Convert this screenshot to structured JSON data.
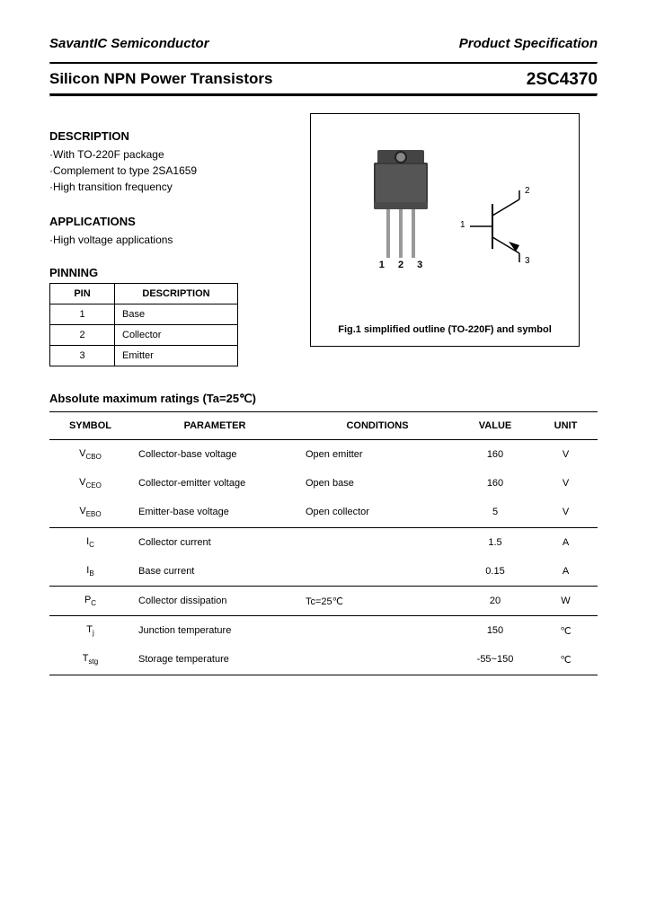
{
  "header": {
    "company": "SavantIC Semiconductor",
    "spec": "Product Specification"
  },
  "title": {
    "left": "Silicon NPN Power Transistors",
    "part": "2SC4370"
  },
  "description": {
    "heading": "DESCRIPTION",
    "items": [
      "·With TO-220F package",
      "·Complement to type 2SA1659",
      "·High transition frequency"
    ]
  },
  "applications": {
    "heading": "APPLICATIONS",
    "items": [
      "·High voltage applications"
    ]
  },
  "pinning": {
    "heading": "PINNING",
    "col_pin": "PIN",
    "col_desc": "DESCRIPTION",
    "rows": [
      {
        "pin": "1",
        "desc": "Base"
      },
      {
        "pin": "2",
        "desc": "Collector"
      },
      {
        "pin": "3",
        "desc": "Emitter"
      }
    ]
  },
  "figure": {
    "pin_labels": "1 2 3",
    "caption": "Fig.1 simplified outline (TO-220F) and symbol",
    "terminal1": "1",
    "terminal2": "2",
    "terminal3": "3"
  },
  "ratings": {
    "title": "Absolute maximum ratings (Ta=25℃)",
    "headers": {
      "symbol": "SYMBOL",
      "parameter": "PARAMETER",
      "conditions": "CONDITIONS",
      "value": "VALUE",
      "unit": "UNIT"
    },
    "rows": [
      {
        "sym_main": "V",
        "sym_sub": "CBO",
        "param": "Collector-base voltage",
        "cond": "Open emitter",
        "value": "160",
        "unit": "V",
        "group_top": true,
        "group_bottom": false
      },
      {
        "sym_main": "V",
        "sym_sub": "CEO",
        "param": "Collector-emitter voltage",
        "cond": "Open base",
        "value": "160",
        "unit": "V",
        "group_top": false,
        "group_bottom": false
      },
      {
        "sym_main": "V",
        "sym_sub": "EBO",
        "param": "Emitter-base voltage",
        "cond": "Open collector",
        "value": "5",
        "unit": "V",
        "group_top": false,
        "group_bottom": true
      },
      {
        "sym_main": "I",
        "sym_sub": "C",
        "param": "Collector current",
        "cond": "",
        "value": "1.5",
        "unit": "A",
        "group_top": true,
        "group_bottom": false
      },
      {
        "sym_main": "I",
        "sym_sub": "B",
        "param": "Base current",
        "cond": "",
        "value": "0.15",
        "unit": "A",
        "group_top": false,
        "group_bottom": true
      },
      {
        "sym_main": "P",
        "sym_sub": "C",
        "param": "Collector dissipation",
        "cond": "Tc=25℃",
        "value": "20",
        "unit": "W",
        "group_top": true,
        "group_bottom": true
      },
      {
        "sym_main": "T",
        "sym_sub": "j",
        "param": "Junction temperature",
        "cond": "",
        "value": "150",
        "unit": "℃",
        "group_top": true,
        "group_bottom": false
      },
      {
        "sym_main": "T",
        "sym_sub": "stg",
        "param": "Storage temperature",
        "cond": "",
        "value": "-55~150",
        "unit": "℃",
        "group_top": false,
        "group_bottom": true
      }
    ]
  },
  "colors": {
    "text": "#000000",
    "bg": "#ffffff",
    "pkg_body": "#555555",
    "pkg_tab": "#444444",
    "lead": "#999999"
  }
}
